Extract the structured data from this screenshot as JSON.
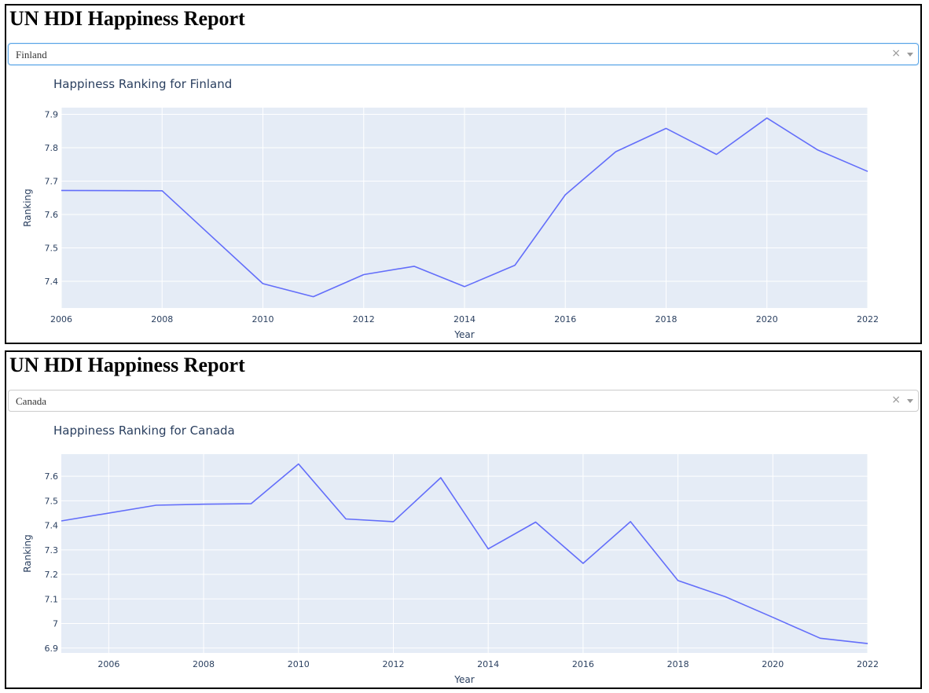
{
  "panels": [
    {
      "heading": "UN HDI Happiness Report",
      "dropdown": {
        "selected": "Finland",
        "clear_glyph": "×",
        "icon": "chevron-down-icon"
      },
      "chart_data": {
        "type": "line",
        "title": "Happiness Ranking for Finland",
        "xlabel": "Year",
        "ylabel": "Ranking",
        "x": [
          2006,
          2008,
          2010,
          2011,
          2012,
          2013,
          2014,
          2015,
          2016,
          2017,
          2018,
          2019,
          2020,
          2021,
          2022
        ],
        "y": [
          7.672,
          7.671,
          7.393,
          7.354,
          7.42,
          7.445,
          7.384,
          7.448,
          7.659,
          7.788,
          7.858,
          7.78,
          7.889,
          7.794,
          7.729
        ],
        "xlim": [
          2006,
          2022
        ],
        "ylim": [
          7.32,
          7.92
        ],
        "xticks": [
          2006,
          2008,
          2010,
          2012,
          2014,
          2016,
          2018,
          2020,
          2022
        ],
        "yticks": [
          7.4,
          7.5,
          7.6,
          7.7,
          7.8,
          7.9
        ],
        "ytick_labels": [
          "7.4",
          "7.5",
          "7.6",
          "7.7",
          "7.8",
          "7.9"
        ],
        "line_color": "#636efa",
        "plot_bg": "#e5ecf6",
        "grid": true
      }
    },
    {
      "heading": "UN HDI Happiness Report",
      "dropdown": {
        "selected": "Canada",
        "clear_glyph": "×",
        "icon": "chevron-down-icon"
      },
      "chart_data": {
        "type": "line",
        "title": "Happiness Ranking for Canada",
        "xlabel": "Year",
        "ylabel": "Ranking",
        "x": [
          2005,
          2007,
          2008,
          2009,
          2010,
          2011,
          2012,
          2013,
          2014,
          2015,
          2016,
          2017,
          2018,
          2019,
          2020,
          2021,
          2022
        ],
        "y": [
          7.418,
          7.482,
          7.486,
          7.488,
          7.65,
          7.426,
          7.415,
          7.594,
          7.304,
          7.413,
          7.245,
          7.415,
          7.175,
          7.109,
          7.025,
          6.94,
          6.918
        ],
        "xlim": [
          2005,
          2022
        ],
        "ylim": [
          6.88,
          7.69
        ],
        "xticks": [
          2006,
          2008,
          2010,
          2012,
          2014,
          2016,
          2018,
          2020,
          2022
        ],
        "yticks": [
          6.9,
          7.0,
          7.1,
          7.2,
          7.3,
          7.4,
          7.5,
          7.6
        ],
        "ytick_labels": [
          "6.9",
          "7",
          "7.1",
          "7.2",
          "7.3",
          "7.4",
          "7.5",
          "7.6"
        ],
        "line_color": "#636efa",
        "plot_bg": "#e5ecf6",
        "grid": true
      }
    }
  ]
}
